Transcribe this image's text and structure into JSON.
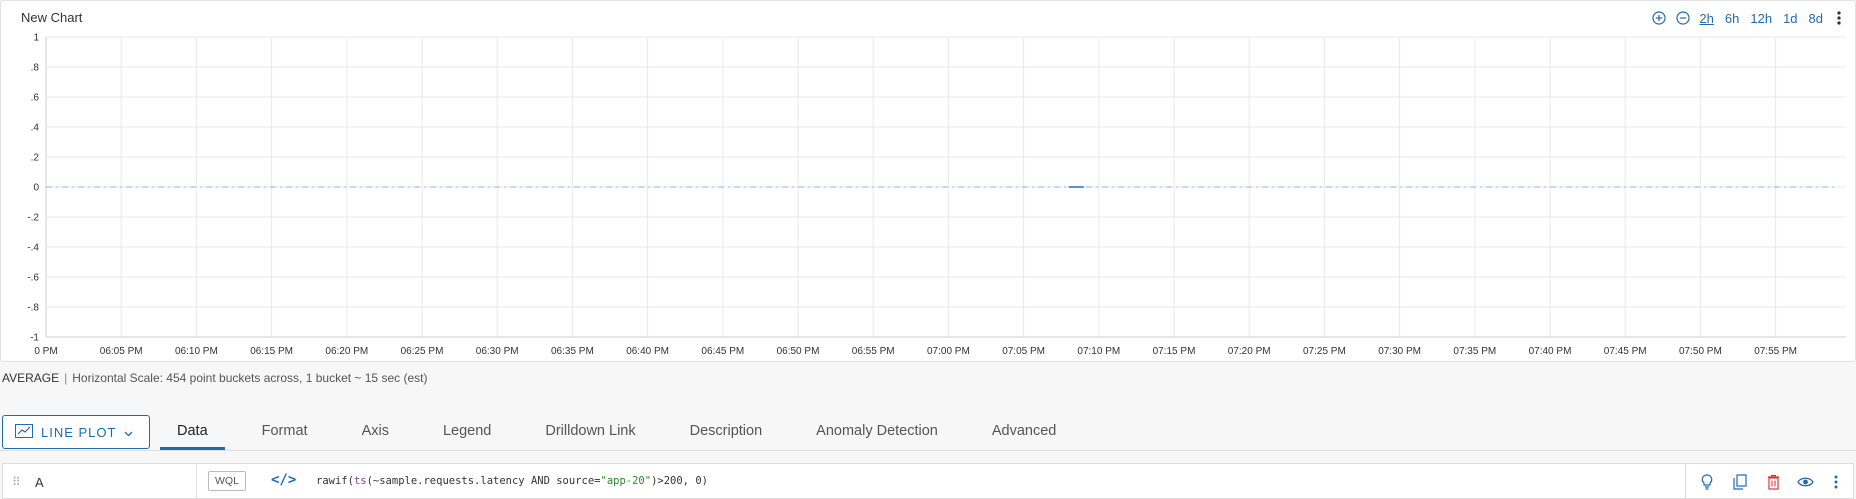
{
  "chart": {
    "title": "New Chart",
    "time_ranges": [
      "2h",
      "6h",
      "12h",
      "1d",
      "8d"
    ],
    "active_range": "2h",
    "icons": [
      "zoom-in-icon",
      "zoom-out-icon",
      "more-vertical-icon"
    ]
  },
  "chart_data": {
    "type": "line",
    "title": "New Chart",
    "xlabel": "",
    "ylabel": "",
    "ylim": [
      -1,
      1
    ],
    "y_ticks": [
      "1",
      ".8",
      ".6",
      ".4",
      ".2",
      "0",
      "-.2",
      "-.4",
      "-.6",
      "-.8",
      "-1"
    ],
    "x_ticks": [
      "0 PM",
      "06:05 PM",
      "06:10 PM",
      "06:15 PM",
      "06:20 PM",
      "06:25 PM",
      "06:30 PM",
      "06:35 PM",
      "06:40 PM",
      "06:45 PM",
      "06:50 PM",
      "06:55 PM",
      "07:00 PM",
      "07:05 PM",
      "07:10 PM",
      "07:15 PM",
      "07:20 PM",
      "07:25 PM",
      "07:30 PM",
      "07:35 PM",
      "07:40 PM",
      "07:45 PM",
      "07:50 PM",
      "07:55 PM"
    ],
    "grid": true,
    "series": [
      {
        "style": "dashed",
        "color": "#9ec4e6",
        "x": [
          "06:00 PM",
          "07:59 PM"
        ],
        "y": [
          0,
          0
        ]
      },
      {
        "style": "solid",
        "color": "#5b8fd1",
        "x": [
          "07:08 PM",
          "07:09 PM"
        ],
        "y": [
          0,
          0
        ]
      }
    ]
  },
  "summary": {
    "aggregation": "AVERAGE",
    "separator": "|",
    "scale_text": "Horizontal Scale: 454 point buckets across, 1 bucket ~ 15 sec (est)"
  },
  "editor": {
    "chart_type_label": "LINE PLOT",
    "tabs": [
      "Data",
      "Format",
      "Axis",
      "Legend",
      "Drilldown Link",
      "Description",
      "Anomaly Detection",
      "Advanced"
    ],
    "active_tab": "Data"
  },
  "query": {
    "name": "A",
    "mode_label": "WQL",
    "code_label": "</>",
    "expression_parts": [
      {
        "t": "rawif(",
        "c": "plain"
      },
      {
        "t": "ts",
        "c": "fn"
      },
      {
        "t": "(~sample.requests.latency AND source=",
        "c": "plain"
      },
      {
        "t": "\"app-20\"",
        "c": "str"
      },
      {
        "t": ")>200, 0)",
        "c": "plain"
      }
    ],
    "actions": [
      "lightbulb-icon",
      "copy-icon",
      "delete-icon",
      "eye-icon",
      "more-vertical-icon"
    ],
    "colors": {
      "accent": "#1f6bb0",
      "delete": "#d83a3a"
    }
  }
}
